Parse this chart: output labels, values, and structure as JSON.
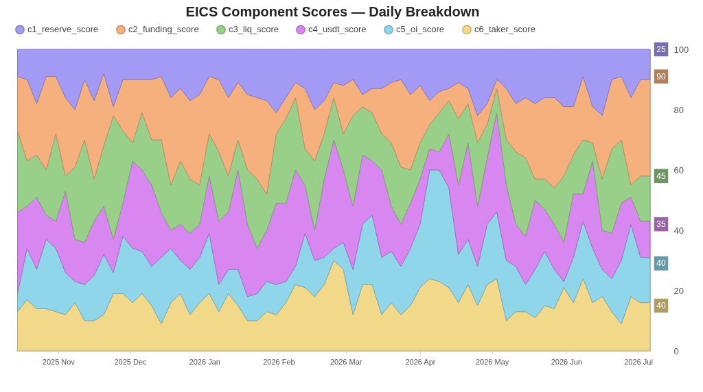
{
  "chart_data": {
    "type": "area",
    "stacked": true,
    "title": "EICS Component Scores — Daily Breakdown",
    "x": [
      "2025-10-15",
      "2025-10-19",
      "2025-10-23",
      "2025-10-27",
      "2025-10-31",
      "2025-11-04",
      "2025-11-08",
      "2025-11-12",
      "2025-11-16",
      "2025-11-20",
      "2025-11-24",
      "2025-11-28",
      "2025-12-02",
      "2025-12-06",
      "2025-12-10",
      "2025-12-14",
      "2025-12-18",
      "2025-12-22",
      "2025-12-26",
      "2025-12-30",
      "2026-01-03",
      "2026-01-07",
      "2026-01-11",
      "2026-01-15",
      "2026-01-19",
      "2026-01-23",
      "2026-01-27",
      "2026-01-31",
      "2026-02-04",
      "2026-02-08",
      "2026-02-12",
      "2026-02-16",
      "2026-02-20",
      "2026-02-24",
      "2026-02-28",
      "2026-03-04",
      "2026-03-08",
      "2026-03-12",
      "2026-03-16",
      "2026-03-20",
      "2026-03-24",
      "2026-03-28",
      "2026-04-01",
      "2026-04-05",
      "2026-04-09",
      "2026-04-13",
      "2026-04-17",
      "2026-04-21",
      "2026-04-25",
      "2026-04-29",
      "2026-05-03",
      "2026-05-07",
      "2026-05-11",
      "2026-05-15",
      "2026-05-19",
      "2026-05-23",
      "2026-05-27",
      "2026-05-31",
      "2026-06-04",
      "2026-06-08",
      "2026-06-12",
      "2026-06-16",
      "2026-06-20",
      "2026-06-24",
      "2026-06-28",
      "2026-07-02",
      "2026-07-06"
    ],
    "series": [
      {
        "name": "c6_taker_score",
        "color": "#f2d98a",
        "values": [
          13,
          17,
          14,
          14,
          13,
          12,
          16,
          10,
          10,
          12,
          19,
          19,
          16,
          19,
          15,
          9,
          16,
          19,
          12,
          16,
          19,
          13,
          19,
          15,
          10,
          10,
          13,
          12,
          16,
          22,
          21,
          18,
          22,
          30,
          27,
          12,
          22,
          22,
          12,
          16,
          12,
          15,
          21,
          24,
          23,
          21,
          16,
          22,
          15,
          22,
          24,
          10,
          13,
          13,
          11,
          15,
          14,
          21,
          16,
          24,
          16,
          18,
          13,
          9,
          18,
          16,
          16
        ]
      },
      {
        "name": "c5_oi_score",
        "color": "#8fd6ea",
        "values": [
          6,
          17,
          13,
          23,
          21,
          14,
          7,
          12,
          15,
          20,
          7,
          19,
          18,
          14,
          13,
          22,
          18,
          11,
          15,
          15,
          20,
          9,
          8,
          12,
          8,
          9,
          10,
          10,
          7,
          6,
          18,
          12,
          9,
          4,
          9,
          15,
          20,
          23,
          19,
          17,
          16,
          19,
          21,
          36,
          37,
          33,
          16,
          15,
          13,
          20,
          22,
          20,
          15,
          9,
          16,
          18,
          13,
          2,
          15,
          19,
          18,
          9,
          11,
          21,
          24,
          15,
          15
        ]
      },
      {
        "name": "c4_usdt_score",
        "color": "#d886f0",
        "values": [
          27,
          14,
          24,
          8,
          9,
          27,
          14,
          14,
          18,
          16,
          11,
          11,
          29,
          27,
          27,
          15,
          6,
          12,
          12,
          11,
          19,
          21,
          19,
          33,
          24,
          15,
          17,
          27,
          26,
          32,
          16,
          10,
          26,
          36,
          24,
          21,
          23,
          18,
          29,
          15,
          14,
          15,
          15,
          7,
          6,
          18,
          23,
          32,
          20,
          22,
          33,
          25,
          14,
          16,
          23,
          14,
          15,
          13,
          21,
          9,
          29,
          13,
          15,
          19,
          9,
          12,
          12
        ]
      },
      {
        "name": "c3_liq_score",
        "color": "#98d08a",
        "values": [
          27,
          15,
          14,
          15,
          29,
          5,
          24,
          34,
          14,
          20,
          41,
          24,
          6,
          19,
          15,
          24,
          15,
          21,
          18,
          13,
          14,
          23,
          12,
          10,
          18,
          23,
          12,
          23,
          28,
          24,
          12,
          23,
          15,
          14,
          12,
          30,
          16,
          16,
          12,
          21,
          19,
          11,
          12,
          8,
          13,
          11,
          22,
          13,
          21,
          11,
          8,
          15,
          24,
          26,
          7,
          10,
          12,
          22,
          13,
          18,
          6,
          17,
          28,
          21,
          4,
          15,
          15
        ]
      },
      {
        "name": "c2_funding_score",
        "color": "#f5b07e",
        "values": [
          18,
          27,
          17,
          31,
          19,
          26,
          19,
          20,
          26,
          24,
          3,
          17,
          21,
          11,
          20,
          21,
          29,
          24,
          26,
          30,
          19,
          24,
          26,
          19,
          25,
          27,
          31,
          7,
          7,
          5,
          20,
          17,
          11,
          5,
          16,
          12,
          4,
          8,
          15,
          20,
          29,
          25,
          19,
          8,
          7,
          4,
          12,
          5,
          9,
          7,
          3,
          17,
          16,
          20,
          25,
          27,
          30,
          23,
          16,
          21,
          12,
          21,
          23,
          21,
          29,
          32,
          32
        ]
      },
      {
        "name": "c1_reserve_score",
        "color": "#a39af5",
        "values": [
          9,
          10,
          18,
          9,
          9,
          16,
          20,
          10,
          17,
          8,
          19,
          10,
          10,
          10,
          10,
          9,
          16,
          13,
          17,
          15,
          9,
          10,
          16,
          11,
          15,
          16,
          17,
          21,
          16,
          11,
          13,
          20,
          17,
          11,
          12,
          10,
          15,
          13,
          13,
          11,
          10,
          15,
          12,
          17,
          14,
          13,
          11,
          13,
          22,
          18,
          10,
          13,
          18,
          16,
          18,
          16,
          16,
          19,
          19,
          9,
          19,
          22,
          10,
          9,
          16,
          10,
          10
        ]
      }
    ],
    "xlim": [
      "2025-10-14",
      "2026-07-06"
    ],
    "xticks": [
      {
        "value": "2025-11-01",
        "label": "2025 Nov"
      },
      {
        "value": "2025-12-01",
        "label": "2025 Dec"
      },
      {
        "value": "2026-01-01",
        "label": "2026 Jan"
      },
      {
        "value": "2026-02-01",
        "label": "2026 Feb"
      },
      {
        "value": "2026-03-01",
        "label": "2026 Mar"
      },
      {
        "value": "2026-04-01",
        "label": "2026 Apr"
      },
      {
        "value": "2026-05-01",
        "label": "2026 May"
      },
      {
        "value": "2026-06-01",
        "label": "2026 Jun"
      },
      {
        "value": "2026-07-01",
        "label": "2026 Jul"
      }
    ],
    "ylim": [
      0,
      100
    ],
    "yticks": [
      0,
      20,
      40,
      60,
      80,
      100
    ],
    "legend": "top",
    "annotations": [
      {
        "text": "25",
        "x": "2026-07-06",
        "y": 100
      },
      {
        "text": "90",
        "x": "2026-07-06",
        "y": 91
      },
      {
        "text": "45",
        "x": "2026-07-06",
        "y": 58
      },
      {
        "text": "35",
        "x": "2026-07-06",
        "y": 42
      },
      {
        "text": "40",
        "x": "2026-07-06",
        "y": 29
      },
      {
        "text": "40",
        "x": "2026-07-06",
        "y": 15
      }
    ]
  }
}
